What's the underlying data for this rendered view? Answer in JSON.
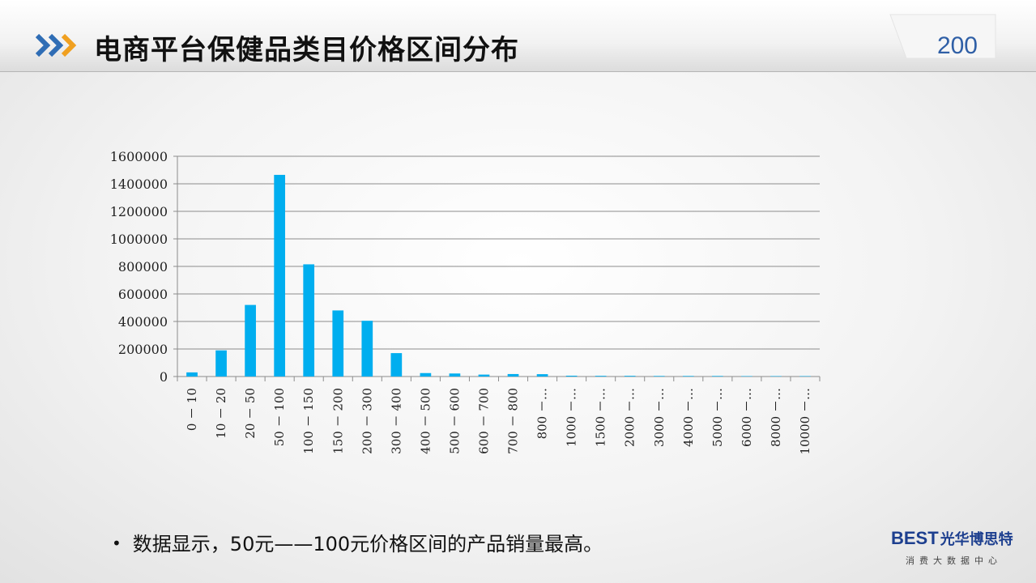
{
  "header": {
    "title": "电商平台保健品类目价格区间分布",
    "page_number": "200",
    "arrow_colors": [
      "#2f6db5",
      "#2f6db5",
      "#f0a020"
    ]
  },
  "chart_data": {
    "type": "bar",
    "categories": [
      "0 － 10",
      "10 － 20",
      "20 － 50",
      "50 － 100",
      "100 － 150",
      "150 － 200",
      "200 － 300",
      "300 － 400",
      "400 － 500",
      "500 － 600",
      "600 － 700",
      "700 － 800",
      "800 －…",
      "1000 －…",
      "1500 －…",
      "2000 －…",
      "3000 －…",
      "4000 －…",
      "5000 －…",
      "6000 －…",
      "8000 －…",
      "10000 －…"
    ],
    "values": [
      30000,
      190000,
      520000,
      1465000,
      815000,
      480000,
      405000,
      170000,
      25000,
      22000,
      14000,
      18000,
      17000,
      6000,
      5000,
      5000,
      4000,
      4000,
      4000,
      3000,
      3000,
      3000
    ],
    "yticks": [
      "0",
      "200000",
      "400000",
      "600000",
      "800000",
      "1000000",
      "1200000",
      "1400000",
      "1600000"
    ],
    "ylim": [
      0,
      1600000
    ],
    "grid": true,
    "bar_color": "#00aeef"
  },
  "footer": {
    "bullet_text": "数据显示，50元——100元价格区间的产品销量最高。"
  },
  "logo": {
    "brand_mark": "BEST",
    "brand_name": "光华博思特",
    "tagline": "消费大数据中心"
  }
}
